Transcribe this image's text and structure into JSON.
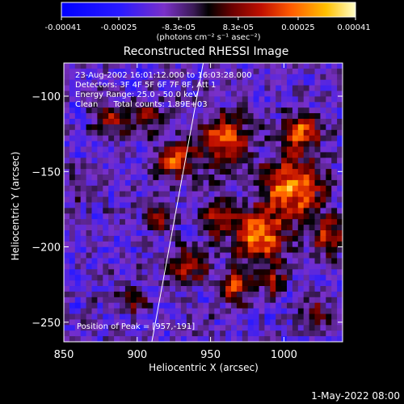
{
  "chart_data": {
    "type": "heatmap",
    "title": "Reconstructed RHESSI Image",
    "xlabel": "Heliocentric X (arcsec)",
    "ylabel": "Heliocentric Y (arcsec)",
    "xlim": [
      850,
      1040
    ],
    "ylim": [
      -263,
      -78
    ],
    "x_ticks": [
      850,
      900,
      950,
      1000
    ],
    "y_ticks": [
      -100,
      -150,
      -200,
      -250
    ],
    "colorbar": {
      "ticks": [
        "-0.00041",
        "-0.00025",
        "-8.3e-05",
        "8.3e-05",
        "0.00025",
        "0.00041"
      ],
      "range": [
        -0.00041,
        0.00041
      ],
      "unit_label": "(photons cm⁻² s⁻¹ asec⁻²)"
    },
    "annotations": [
      "23-Aug-2002 16:01:12.000 to 16:03:28.000",
      "Detectors: 3F 4F 5F 6F 7F 8F, Att 1",
      "Energy Range: 25.0 - 50.0 keV",
      "Clean      Total counts: 1.89E+03"
    ],
    "peak_label": "Position of Peak = [957,-191]",
    "peak": [
      957,
      -191
    ],
    "limb_line": [
      [
        910,
        -263
      ],
      [
        945,
        -78
      ]
    ],
    "footer": "1-May-2022 08:00",
    "colors": {
      "background": "#000000",
      "text": "#ffffff"
    }
  }
}
